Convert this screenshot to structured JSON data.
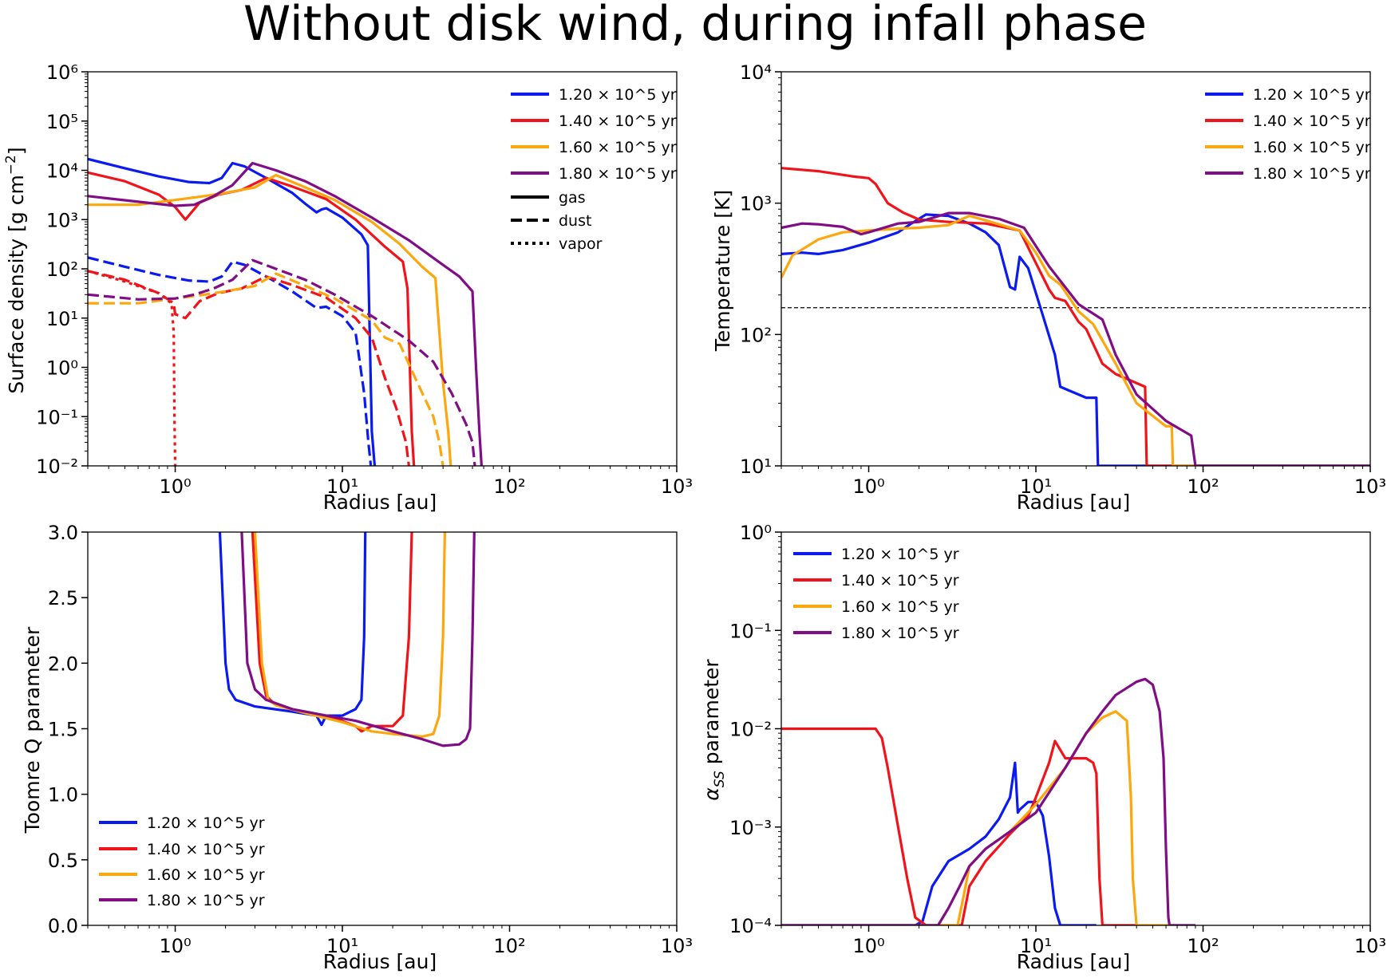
{
  "title": "Without disk wind, during infall phase",
  "colors": {
    "blue": "#0b1af0",
    "red": "#f0141a",
    "orange": "#fca70e",
    "purple": "#800d86"
  },
  "panels": {
    "surface_density": {
      "xlabel": "Radius [au]",
      "ylabel_base": "Surface density [g cm",
      "ylabel_exp": "−2",
      "ylabel_tail": "]",
      "legend": [
        "1.20 × 10^5 yr",
        "1.40 × 10^5 yr",
        "1.60 × 10^5 yr",
        "1.80 × 10^5 yr"
      ],
      "legend_styles": [
        "gas",
        "dust",
        "vapor"
      ]
    },
    "temperature": {
      "xlabel": "Radius [au]",
      "ylabel": "Temperature [K]",
      "legend": [
        "1.20 × 10^5 yr",
        "1.40 × 10^5 yr",
        "1.60 × 10^5 yr",
        "1.80 × 10^5 yr"
      ]
    },
    "toomre": {
      "xlabel": "Radius [au]",
      "ylabel": "Toomre Q parameter",
      "legend": [
        "1.20 × 10^5 yr",
        "1.40 × 10^5 yr",
        "1.60 × 10^5 yr",
        "1.80 × 10^5 yr"
      ]
    },
    "alpha": {
      "xlabel": "Radius [au]",
      "ylabel_base": "α",
      "ylabel_sub": "SS",
      "ylabel_tail": " parameter",
      "legend": [
        "1.20 × 10^5 yr",
        "1.40 × 10^5 yr",
        "1.60 × 10^5 yr",
        "1.80 × 10^5 yr"
      ]
    }
  },
  "chart_data": [
    {
      "type": "line",
      "xlabel": "Radius [au]",
      "ylabel": "Surface density [g cm^-2]",
      "xscale": "log",
      "yscale": "log",
      "xlim": [
        0.3,
        1000
      ],
      "ylim": [
        0.01,
        1000000
      ],
      "legend_placement": "top-right",
      "series": [
        {
          "name": "1.20 × 10^5 yr",
          "style": "gas",
          "color": "blue",
          "x": [
            0.3,
            0.5,
            0.8,
            1.2,
            1.6,
            1.9,
            2.2,
            2.6,
            3.5,
            5,
            6,
            7,
            7.5,
            8,
            10,
            13,
            14.2,
            15,
            15.6
          ],
          "y": [
            17000,
            11000,
            7500,
            5800,
            5500,
            7000,
            14000,
            12000,
            7000,
            3500,
            2100,
            1400,
            1600,
            1700,
            1100,
            500,
            300,
            0.05,
            0.01
          ]
        },
        {
          "name": "1.40 × 10^5 yr",
          "style": "gas",
          "color": "red",
          "x": [
            0.3,
            0.5,
            0.8,
            1.0,
            1.15,
            1.4,
            1.8,
            2.5,
            3.5,
            5,
            8,
            12,
            18,
            23,
            24.5,
            26,
            26.8
          ],
          "y": [
            9000,
            6000,
            3200,
            1800,
            1000,
            2200,
            3200,
            4000,
            7000,
            4700,
            2600,
            1000,
            280,
            140,
            40,
            0.05,
            0.01
          ]
        },
        {
          "name": "1.60 × 10^5 yr",
          "style": "gas",
          "color": "orange",
          "x": [
            0.3,
            0.6,
            1.0,
            1.5,
            2,
            3,
            4,
            6,
            9,
            15,
            22,
            30,
            36,
            40,
            43,
            44.5
          ],
          "y": [
            2000,
            2000,
            2500,
            3000,
            3500,
            4500,
            8000,
            4500,
            2500,
            900,
            320,
            110,
            65,
            0.5,
            0.05,
            0.01
          ]
        },
        {
          "name": "1.80 × 10^5 yr",
          "style": "gas",
          "color": "purple",
          "x": [
            0.3,
            0.6,
            1.0,
            1.3,
            1.7,
            2.2,
            2.9,
            4,
            6,
            9,
            15,
            25,
            40,
            50,
            60,
            63,
            66,
            68
          ],
          "y": [
            3000,
            2300,
            1900,
            2000,
            3000,
            5000,
            14000,
            10000,
            6000,
            3000,
            1100,
            380,
            120,
            70,
            35,
            1,
            0.05,
            0.01
          ]
        },
        {
          "name": "1.20 × 10^5 yr",
          "style": "dust",
          "color": "blue",
          "x": [
            0.3,
            0.5,
            0.8,
            1.2,
            1.6,
            1.9,
            2.2,
            2.6,
            3.5,
            5,
            7,
            8,
            10,
            12,
            13.5,
            14.3,
            14.8
          ],
          "y": [
            170,
            110,
            75,
            58,
            55,
            70,
            140,
            120,
            70,
            35,
            16,
            17,
            11,
            5,
            0.3,
            0.03,
            0.01
          ]
        },
        {
          "name": "1.40 × 10^5 yr",
          "style": "dust",
          "color": "red",
          "x": [
            0.3,
            0.5,
            0.8,
            0.98,
            1.0,
            1.15,
            1.4,
            1.8,
            2.5,
            3.5,
            5,
            8,
            12,
            15,
            18,
            21,
            24,
            25
          ],
          "y": [
            90,
            60,
            32,
            20,
            12,
            10,
            22,
            32,
            40,
            70,
            47,
            26,
            10,
            4,
            0.6,
            0.15,
            0.03,
            0.01
          ]
        },
        {
          "name": "1.60 × 10^5 yr",
          "style": "dust",
          "color": "orange",
          "x": [
            0.3,
            0.6,
            1.0,
            1.5,
            2,
            3,
            4,
            6,
            9,
            15,
            18,
            22,
            28,
            35,
            38,
            40
          ],
          "y": [
            20,
            20,
            25,
            30,
            35,
            45,
            80,
            45,
            25,
            9,
            4,
            3,
            0.5,
            0.1,
            0.03,
            0.01
          ]
        },
        {
          "name": "1.80 × 10^5 yr",
          "style": "dust",
          "color": "purple",
          "x": [
            0.3,
            0.6,
            1.0,
            1.3,
            1.7,
            2.2,
            2.9,
            4,
            6,
            9,
            15,
            25,
            35,
            45,
            55,
            60,
            62
          ],
          "y": [
            30,
            24,
            25,
            30,
            40,
            60,
            150,
            100,
            60,
            30,
            11,
            3.5,
            1.3,
            0.3,
            0.07,
            0.03,
            0.01
          ]
        },
        {
          "name": "1.40 × 10^5 yr",
          "style": "vapor",
          "color": "red",
          "x": [
            0.3,
            0.5,
            0.8,
            0.95,
            0.98,
            0.99,
            1.0
          ],
          "y": [
            90,
            55,
            32,
            20,
            5,
            0.1,
            0.01
          ]
        }
      ]
    },
    {
      "type": "line",
      "xlabel": "Radius [au]",
      "ylabel": "Temperature [K]",
      "xscale": "log",
      "yscale": "log",
      "xlim": [
        0.3,
        1000
      ],
      "ylim": [
        10,
        10000
      ],
      "legend_placement": "top-right",
      "hline": {
        "y": 160,
        "style": "dashed"
      },
      "series": [
        {
          "name": "1.20 × 10^5 yr",
          "color": "blue",
          "x": [
            0.3,
            0.4,
            0.5,
            0.7,
            1.0,
            1.5,
            1.8,
            2.2,
            3,
            4,
            5,
            6,
            7,
            7.5,
            8,
            9,
            11,
            13,
            14,
            20,
            23,
            23.5,
            1000
          ],
          "y": [
            410,
            420,
            410,
            440,
            500,
            600,
            700,
            820,
            800,
            700,
            600,
            480,
            230,
            220,
            390,
            320,
            140,
            70,
            40,
            33,
            33,
            10,
            10
          ]
        },
        {
          "name": "1.40 × 10^5 yr",
          "color": "red",
          "x": [
            0.3,
            0.5,
            0.8,
            1.0,
            1.1,
            1.3,
            1.6,
            2,
            3,
            5,
            8,
            10,
            12,
            13,
            15,
            18,
            20,
            25,
            30,
            45,
            46,
            1000
          ],
          "y": [
            1850,
            1750,
            1600,
            1550,
            1400,
            1000,
            850,
            750,
            720,
            700,
            620,
            350,
            220,
            190,
            180,
            125,
            110,
            60,
            50,
            40,
            10,
            10
          ]
        },
        {
          "name": "1.60 × 10^5 yr",
          "color": "orange",
          "x": [
            0.3,
            0.35,
            0.5,
            0.7,
            1.0,
            1.5,
            2,
            3,
            4,
            5,
            8,
            10,
            12,
            14,
            18,
            22,
            30,
            40,
            60,
            65,
            66,
            1000
          ],
          "y": [
            270,
            400,
            530,
            600,
            620,
            640,
            650,
            680,
            800,
            740,
            620,
            420,
            280,
            240,
            150,
            120,
            60,
            30,
            20,
            20,
            10,
            10
          ]
        },
        {
          "name": "1.80 × 10^5 yr",
          "color": "purple",
          "x": [
            0.3,
            0.4,
            0.5,
            0.7,
            0.9,
            1.0,
            1.5,
            2,
            3,
            4,
            6,
            8.5,
            12,
            18,
            25,
            30,
            40,
            60,
            85,
            90,
            1000
          ],
          "y": [
            650,
            700,
            690,
            660,
            580,
            600,
            700,
            720,
            840,
            840,
            760,
            650,
            330,
            170,
            130,
            70,
            35,
            22,
            17,
            10,
            10
          ]
        }
      ]
    },
    {
      "type": "line",
      "xlabel": "Radius [au]",
      "ylabel": "Toomre Q parameter",
      "xscale": "log",
      "yscale": "linear",
      "xlim": [
        0.3,
        1000
      ],
      "ylim": [
        0.0,
        3.0
      ],
      "legend_placement": "bottom-left",
      "series": [
        {
          "name": "1.20 × 10^5 yr",
          "color": "blue",
          "x": [
            1.85,
            2.0,
            2.1,
            2.3,
            3,
            5,
            7,
            7.5,
            8,
            10,
            12,
            13,
            13.5,
            13.7
          ],
          "y": [
            3.0,
            2.0,
            1.8,
            1.72,
            1.67,
            1.63,
            1.6,
            1.53,
            1.6,
            1.6,
            1.65,
            1.72,
            2.2,
            3.0
          ]
        },
        {
          "name": "1.40 × 10^5 yr",
          "color": "red",
          "x": [
            2.9,
            3.2,
            3.5,
            4,
            6,
            9,
            12,
            13,
            15,
            20,
            23,
            25,
            26
          ],
          "y": [
            3.0,
            2.0,
            1.75,
            1.68,
            1.62,
            1.58,
            1.52,
            1.48,
            1.52,
            1.52,
            1.6,
            2.2,
            3.0
          ]
        },
        {
          "name": "1.60 × 10^5 yr",
          "color": "orange",
          "x": [
            3.0,
            3.3,
            3.6,
            4,
            6,
            10,
            15,
            20,
            30,
            35,
            38,
            40,
            41
          ],
          "y": [
            3.0,
            2.0,
            1.72,
            1.68,
            1.62,
            1.55,
            1.48,
            1.46,
            1.44,
            1.46,
            1.6,
            2.2,
            3.0
          ]
        },
        {
          "name": "1.80 × 10^5 yr",
          "color": "purple",
          "x": [
            2.5,
            2.7,
            3,
            3.5,
            5,
            8,
            12,
            20,
            30,
            40,
            50,
            55,
            58,
            60,
            61.5
          ],
          "y": [
            3.0,
            2.0,
            1.8,
            1.72,
            1.65,
            1.6,
            1.56,
            1.48,
            1.42,
            1.37,
            1.38,
            1.42,
            1.5,
            2.2,
            3.0
          ]
        }
      ]
    },
    {
      "type": "line",
      "xlabel": "Radius [au]",
      "ylabel": "α_SS parameter",
      "xscale": "log",
      "yscale": "log",
      "xlim": [
        0.3,
        1000
      ],
      "ylim": [
        0.0001,
        1
      ],
      "legend_placement": "top-left",
      "series": [
        {
          "name": "1.20 × 10^5 yr",
          "color": "blue",
          "x": [
            0.3,
            1.9,
            2.1,
            2.4,
            3,
            4,
            5,
            6,
            7,
            7.5,
            7.8,
            8,
            9,
            10,
            11,
            12,
            13,
            14,
            23
          ],
          "y": [
            0.0001,
            0.0001,
            0.00011,
            0.00025,
            0.00045,
            0.0006,
            0.0008,
            0.0012,
            0.002,
            0.0045,
            0.0014,
            0.0015,
            0.0018,
            0.0018,
            0.0013,
            0.0005,
            0.00015,
            0.0001,
            0.0001
          ]
        },
        {
          "name": "1.40 × 10^5 yr",
          "color": "red",
          "x": [
            0.3,
            1.1,
            1.2,
            1.3,
            1.5,
            1.7,
            1.9,
            2.2,
            3,
            3.6,
            4,
            5,
            7,
            9,
            10,
            12,
            13,
            15,
            20,
            22,
            23,
            24,
            25,
            40
          ],
          "y": [
            0.01,
            0.01,
            0.008,
            0.004,
            0.001,
            0.0003,
            0.00012,
            0.0001,
            0.0001,
            0.0001,
            0.00025,
            0.00045,
            0.00085,
            0.0013,
            0.002,
            0.0045,
            0.0075,
            0.005,
            0.005,
            0.0045,
            0.0035,
            0.0003,
            0.0001,
            0.0001
          ]
        },
        {
          "name": "1.60 × 10^5 yr",
          "color": "orange",
          "x": [
            0.3,
            3.4,
            3.7,
            4,
            5,
            7,
            10,
            15,
            20,
            25,
            30,
            35,
            37,
            38,
            40,
            62
          ],
          "y": [
            0.0001,
            0.0001,
            0.0002,
            0.0004,
            0.0006,
            0.0009,
            0.0017,
            0.004,
            0.009,
            0.013,
            0.015,
            0.012,
            0.002,
            0.0003,
            0.0001,
            0.0001
          ]
        },
        {
          "name": "1.80 × 10^5 yr",
          "color": "purple",
          "x": [
            0.3,
            2.6,
            3,
            3.5,
            4,
            5,
            7,
            10,
            15,
            20,
            25,
            30,
            40,
            45,
            50,
            55,
            58,
            60,
            62,
            63,
            90
          ],
          "y": [
            0.0001,
            0.0001,
            0.00015,
            0.00025,
            0.0004,
            0.0006,
            0.0009,
            0.0014,
            0.004,
            0.009,
            0.015,
            0.022,
            0.03,
            0.032,
            0.028,
            0.015,
            0.005,
            0.0006,
            0.00012,
            0.0001,
            0.0001
          ]
        }
      ]
    }
  ]
}
